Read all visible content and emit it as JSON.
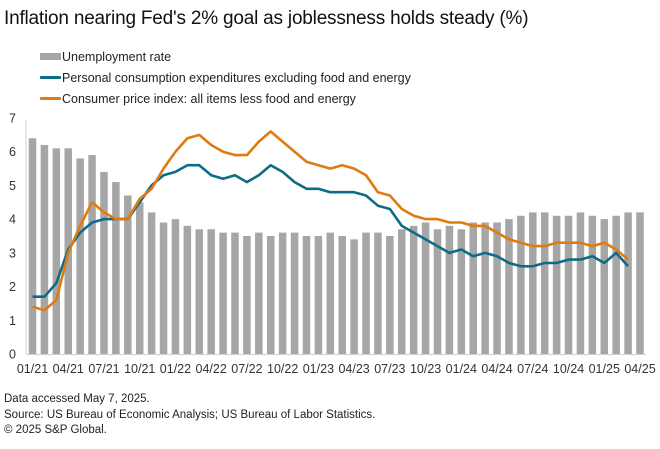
{
  "title": "Inflation nearing Fed's 2% goal as joblessness holds steady (%)",
  "footer": {
    "line1": "Data accessed May 7, 2025.",
    "line2": "Source: US Bureau of Economic Analysis; US Bureau of Labor Statistics.",
    "line3": "© 2025 S&P Global."
  },
  "colors": {
    "unemployment": "#a6a6a6",
    "pce": "#0e6c86",
    "cpi": "#e07b10",
    "axis": "#d0d0d0"
  },
  "chart_data": {
    "type": "bar",
    "title": "Inflation nearing Fed's 2% goal as joblessness holds steady (%)",
    "xlabel": "",
    "ylabel": "",
    "ylim": [
      0,
      7
    ],
    "yticks": [
      "0",
      "1",
      "2",
      "3",
      "4",
      "5",
      "6",
      "7"
    ],
    "xtick_labels": [
      "01/21",
      "04/21",
      "07/21",
      "10/21",
      "01/22",
      "04/22",
      "07/22",
      "10/22",
      "01/23",
      "04/23",
      "07/23",
      "10/23",
      "01/24",
      "04/24",
      "07/24",
      "10/24",
      "01/25",
      "04/25"
    ],
    "legend_position": "top-left",
    "grid": false,
    "categories": [
      "01/21",
      "02/21",
      "03/21",
      "04/21",
      "05/21",
      "06/21",
      "07/21",
      "08/21",
      "09/21",
      "10/21",
      "11/21",
      "12/21",
      "01/22",
      "02/22",
      "03/22",
      "04/22",
      "05/22",
      "06/22",
      "07/22",
      "08/22",
      "09/22",
      "10/22",
      "11/22",
      "12/22",
      "01/23",
      "02/23",
      "03/23",
      "04/23",
      "05/23",
      "06/23",
      "07/23",
      "08/23",
      "09/23",
      "10/23",
      "11/23",
      "12/23",
      "01/24",
      "02/24",
      "03/24",
      "04/24",
      "05/24",
      "06/24",
      "07/24",
      "08/24",
      "09/24",
      "10/24",
      "11/24",
      "12/24",
      "01/25",
      "02/25",
      "03/25",
      "04/25"
    ],
    "series": [
      {
        "name": "Unemployment rate",
        "type": "bar",
        "values": [
          6.4,
          6.2,
          6.1,
          6.1,
          5.8,
          5.9,
          5.4,
          5.1,
          4.7,
          4.5,
          4.2,
          3.9,
          4.0,
          3.8,
          3.7,
          3.7,
          3.6,
          3.6,
          3.5,
          3.6,
          3.5,
          3.6,
          3.6,
          3.5,
          3.5,
          3.6,
          3.5,
          3.4,
          3.6,
          3.6,
          3.5,
          3.7,
          3.8,
          3.9,
          3.7,
          3.8,
          3.7,
          3.9,
          3.9,
          3.9,
          4.0,
          4.1,
          4.2,
          4.2,
          4.1,
          4.1,
          4.2,
          4.1,
          4.0,
          4.1,
          4.2,
          4.2
        ]
      },
      {
        "name": "Personal consumption expenditures excluding food and energy",
        "type": "line",
        "values": [
          1.7,
          1.7,
          2.1,
          3.1,
          3.6,
          3.9,
          4.0,
          4.0,
          4.0,
          4.5,
          5.0,
          5.3,
          5.4,
          5.6,
          5.6,
          5.3,
          5.2,
          5.3,
          5.1,
          5.3,
          5.6,
          5.4,
          5.1,
          4.9,
          4.9,
          4.8,
          4.8,
          4.8,
          4.7,
          4.4,
          4.3,
          3.8,
          3.6,
          3.4,
          3.2,
          3.0,
          3.1,
          2.9,
          3.0,
          2.9,
          2.7,
          2.6,
          2.6,
          2.7,
          2.7,
          2.8,
          2.8,
          2.9,
          2.7,
          3.0,
          2.6,
          null
        ]
      },
      {
        "name": "Consumer price index: all items less food and energy",
        "type": "line",
        "values": [
          1.4,
          1.3,
          1.6,
          3.0,
          3.8,
          4.5,
          4.2,
          4.0,
          4.0,
          4.6,
          4.9,
          5.5,
          6.0,
          6.4,
          6.5,
          6.2,
          6.0,
          5.9,
          5.9,
          6.3,
          6.6,
          6.3,
          6.0,
          5.7,
          5.6,
          5.5,
          5.6,
          5.5,
          5.3,
          4.8,
          4.7,
          4.3,
          4.1,
          4.0,
          4.0,
          3.9,
          3.9,
          3.8,
          3.8,
          3.6,
          3.4,
          3.3,
          3.2,
          3.2,
          3.3,
          3.3,
          3.3,
          3.2,
          3.3,
          3.1,
          2.8,
          null
        ]
      }
    ]
  }
}
